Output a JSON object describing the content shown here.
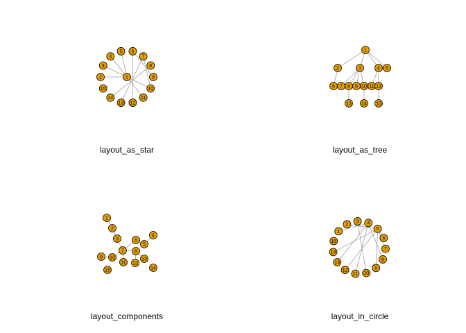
{
  "panels": [
    {
      "title": "layout_as_star",
      "nodes": [
        "1",
        "2",
        "3",
        "4",
        "5",
        "6",
        "7",
        "8",
        "9",
        "10",
        "11",
        "12",
        "13",
        "14",
        "15"
      ]
    },
    {
      "title": "layout_as_tree",
      "nodes": [
        "1",
        "2",
        "3",
        "4",
        "5",
        "6",
        "7",
        "8",
        "9",
        "10",
        "11",
        "12",
        "13",
        "14",
        "15"
      ]
    },
    {
      "title": "layout_components",
      "nodes": [
        "1",
        "2",
        "3",
        "4",
        "5",
        "6",
        "7",
        "8",
        "9",
        "10",
        "11",
        "12",
        "13",
        "14",
        "15"
      ]
    },
    {
      "title": "layout_in_circle",
      "nodes": [
        "1",
        "2",
        "3",
        "4",
        "5",
        "6",
        "7",
        "8",
        "9",
        "10",
        "11",
        "12",
        "13",
        "14",
        "15"
      ]
    }
  ]
}
